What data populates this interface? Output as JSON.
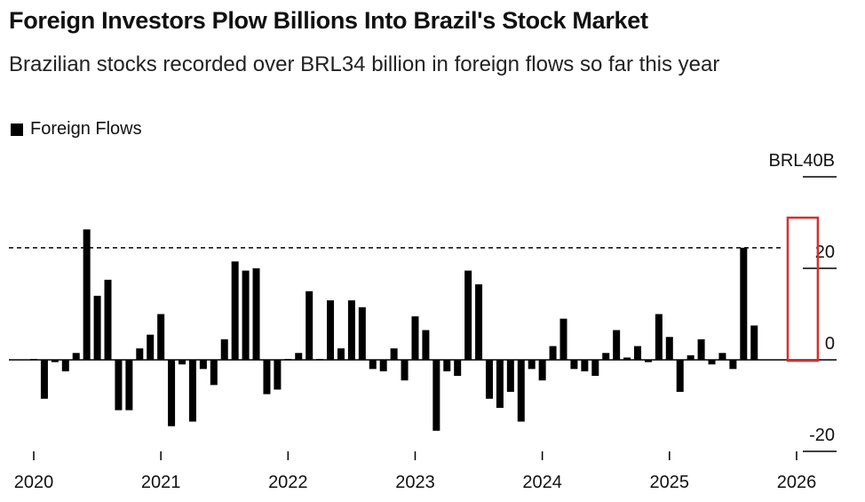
{
  "title": "Foreign Investors Plow Billions Into Brazil's Stock Market",
  "subtitle": "Brazilian stocks recorded over BRL34 billion in foreign flows so far this year",
  "legend_label": "Foreign Flows",
  "colors": {
    "bar": "#000000",
    "highlight_box": "#d62f2f",
    "axis": "#000000",
    "reference_line": "#000000"
  },
  "chart_data": {
    "type": "bar",
    "series": [
      {
        "name": "Foreign Flows",
        "values": [
          0.2,
          -8.5,
          -0.5,
          -2.5,
          1.5,
          28.5,
          14,
          17.5,
          -11,
          -11,
          2.5,
          5.5,
          10,
          -14.5,
          -1,
          -13.5,
          -2,
          -5.5,
          4.5,
          21.5,
          19.5,
          20,
          -7.5,
          -6.5,
          0.2,
          1.5,
          15,
          0.2,
          13,
          2.5,
          13,
          11.5,
          -2,
          -2.5,
          2.5,
          -4.5,
          9.5,
          6.5,
          -15.5,
          -2.5,
          -3.5,
          19.5,
          16.5,
          -8.5,
          -10.5,
          -7,
          -13.5,
          -2,
          -4.5,
          3,
          9,
          -2,
          -2.5,
          -3.5,
          1.5,
          6.5,
          0.5,
          3,
          -0.5,
          10,
          5,
          -7,
          1,
          4.5,
          -1,
          1.5,
          -2,
          24.5,
          7.5
        ]
      }
    ],
    "x_start": "2020-01",
    "x_end": "2026-02",
    "x_ticks": [
      {
        "label": "2020",
        "date": "2020-01"
      },
      {
        "label": "2021",
        "date": "2021-01"
      },
      {
        "label": "2022",
        "date": "2022-01"
      },
      {
        "label": "2023",
        "date": "2023-01"
      },
      {
        "label": "2024",
        "date": "2024-01"
      },
      {
        "label": "2025",
        "date": "2025-01"
      },
      {
        "label": "2026",
        "date": "2026-01"
      }
    ],
    "y_ticks": [
      {
        "value": 40,
        "label": "BRL40B"
      },
      {
        "value": 20,
        "label": "20"
      },
      {
        "value": 0,
        "label": "0"
      },
      {
        "value": -20,
        "label": "-20"
      }
    ],
    "ylim": [
      -20,
      40
    ],
    "reference_line": 24.5,
    "highlight_range": [
      "2026-01",
      "2026-02"
    ]
  }
}
